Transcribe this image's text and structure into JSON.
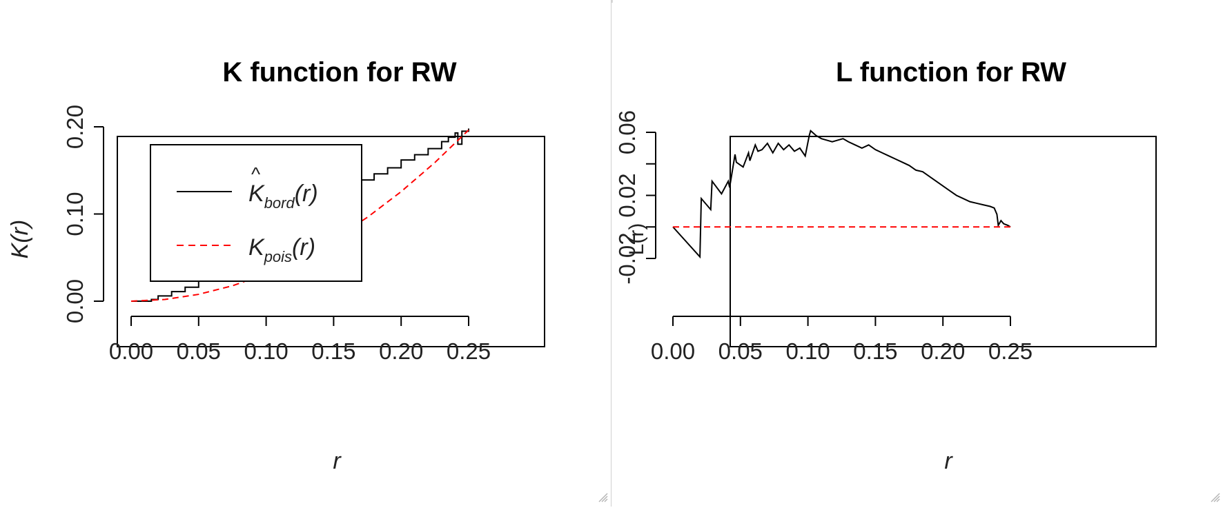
{
  "chart_data": [
    {
      "type": "line",
      "title": "K function for RW",
      "xlabel": "r",
      "ylabel": "K(r)",
      "xlim": [
        0,
        0.25
      ],
      "ylim": [
        0,
        0.2
      ],
      "x_ticks": [
        "0.00",
        "0.05",
        "0.10",
        "0.15",
        "0.20",
        "0.25"
      ],
      "y_ticks": [
        "0.00",
        "0.10",
        "0.20"
      ],
      "legend_position": "top-left",
      "series": [
        {
          "legend": {
            "base": "K",
            "sub": "bord",
            "arg": "(r)",
            "hat": true
          },
          "color": "#000000",
          "style": "solid-step",
          "x": [
            0,
            0.015,
            0.02,
            0.03,
            0.04,
            0.05,
            0.055,
            0.065,
            0.07,
            0.08,
            0.09,
            0.1,
            0.11,
            0.12,
            0.13,
            0.14,
            0.15,
            0.16,
            0.17,
            0.18,
            0.19,
            0.2,
            0.21,
            0.22,
            0.23,
            0.235,
            0.24,
            0.242,
            0.245,
            0.25
          ],
          "y": [
            0,
            0.002,
            0.006,
            0.011,
            0.016,
            0.023,
            0.03,
            0.041,
            0.048,
            0.056,
            0.066,
            0.077,
            0.088,
            0.098,
            0.106,
            0.113,
            0.123,
            0.132,
            0.139,
            0.146,
            0.153,
            0.162,
            0.168,
            0.175,
            0.183,
            0.188,
            0.193,
            0.18,
            0.195,
            0.198
          ]
        },
        {
          "legend": {
            "base": "K",
            "sub": "pois",
            "arg": "(r)",
            "hat": false
          },
          "color": "#ff0000",
          "style": "dashed",
          "function": "pi*r^2",
          "x": [
            0,
            0.025,
            0.05,
            0.075,
            0.1,
            0.125,
            0.15,
            0.175,
            0.2,
            0.225,
            0.25
          ],
          "y": [
            0,
            0.00196,
            0.00785,
            0.01767,
            0.03142,
            0.04909,
            0.07069,
            0.09621,
            0.12566,
            0.15904,
            0.19635
          ]
        }
      ]
    },
    {
      "type": "line",
      "title": "L function for RW",
      "xlabel": "r",
      "ylabel": "L(r)",
      "xlim": [
        0,
        0.25
      ],
      "ylim": [
        -0.02,
        0.06
      ],
      "x_ticks": [
        "0.00",
        "0.05",
        "0.10",
        "0.15",
        "0.20",
        "0.25"
      ],
      "y_ticks": [
        "-0.02",
        "0.02",
        "0.06"
      ],
      "y_minor_ticks": [
        -0.02,
        0,
        0.02,
        0.04,
        0.06
      ],
      "series": [
        {
          "color": "#000000",
          "style": "solid",
          "x": [
            0,
            0.02,
            0.021,
            0.028,
            0.029,
            0.036,
            0.041,
            0.042,
            0.046,
            0.047,
            0.052,
            0.056,
            0.057,
            0.061,
            0.063,
            0.066,
            0.07,
            0.074,
            0.078,
            0.082,
            0.086,
            0.09,
            0.094,
            0.098,
            0.101,
            0.102,
            0.106,
            0.11,
            0.114,
            0.118,
            0.122,
            0.126,
            0.13,
            0.135,
            0.14,
            0.145,
            0.15,
            0.155,
            0.16,
            0.165,
            0.17,
            0.175,
            0.18,
            0.185,
            0.19,
            0.195,
            0.2,
            0.205,
            0.21,
            0.215,
            0.22,
            0.225,
            0.23,
            0.235,
            0.238,
            0.24,
            0.241,
            0.243,
            0.245,
            0.248,
            0.25
          ],
          "y": [
            0,
            -0.019,
            0.018,
            0.011,
            0.029,
            0.021,
            0.029,
            0.025,
            0.046,
            0.041,
            0.038,
            0.047,
            0.042,
            0.052,
            0.048,
            0.049,
            0.053,
            0.047,
            0.053,
            0.049,
            0.052,
            0.048,
            0.05,
            0.045,
            0.058,
            0.061,
            0.058,
            0.056,
            0.055,
            0.054,
            0.055,
            0.056,
            0.054,
            0.052,
            0.05,
            0.052,
            0.049,
            0.047,
            0.045,
            0.043,
            0.041,
            0.039,
            0.036,
            0.035,
            0.032,
            0.029,
            0.026,
            0.023,
            0.02,
            0.018,
            0.016,
            0.015,
            0.014,
            0.013,
            0.012,
            0.008,
            0.001,
            0.004,
            0.002,
            0.001,
            0
          ]
        },
        {
          "color": "#ff0000",
          "style": "dashed",
          "x": [
            0,
            0.25
          ],
          "y": [
            0,
            0
          ]
        }
      ]
    }
  ]
}
